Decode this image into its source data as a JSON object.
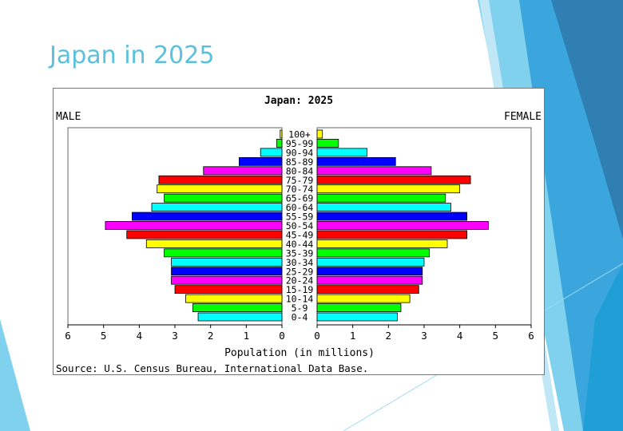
{
  "slide": {
    "title": "Japan in 2025"
  },
  "colors": {
    "accent": "#5bc0de",
    "dark_accent": "#2f7fb2"
  },
  "chart_data": {
    "type": "bar",
    "orientation": "horizontal-population-pyramid",
    "title": "Japan: 2025",
    "side_labels": {
      "left": "MALE",
      "right": "FEMALE"
    },
    "xlabel": "Population (in millions)",
    "source": "Source: U.S. Census Bureau, International Data Base.",
    "xlim": [
      0,
      6
    ],
    "x_ticks": [
      "6",
      "5",
      "4",
      "3",
      "2",
      "1",
      "0",
      "0",
      "1",
      "2",
      "3",
      "4",
      "5",
      "6"
    ],
    "categories": [
      "100+",
      "95-99",
      "90-94",
      "85-89",
      "80-84",
      "75-79",
      "70-74",
      "65-69",
      "60-64",
      "55-59",
      "50-54",
      "45-49",
      "40-44",
      "35-39",
      "30-34",
      "25-29",
      "20-24",
      "15-19",
      "10-14",
      "5-9",
      "0-4"
    ],
    "bar_colors": [
      "#ffff00",
      "#00ff00",
      "#00ffff",
      "#0000ff",
      "#ff00ff",
      "#ff0000",
      "#ffff00",
      "#00ff00",
      "#00ffff",
      "#0000ff",
      "#ff00ff",
      "#ff0000",
      "#ffff00",
      "#00ff00",
      "#00ffff",
      "#0000ff",
      "#ff00ff",
      "#ff0000",
      "#ffff00",
      "#00ff00",
      "#00ffff"
    ],
    "series": [
      {
        "name": "MALE",
        "values": [
          0.05,
          0.15,
          0.6,
          1.2,
          2.2,
          3.45,
          3.5,
          3.3,
          3.65,
          4.2,
          4.95,
          4.35,
          3.8,
          3.3,
          3.1,
          3.1,
          3.1,
          3.0,
          2.7,
          2.5,
          2.35
        ]
      },
      {
        "name": "FEMALE",
        "values": [
          0.15,
          0.6,
          1.4,
          2.2,
          3.2,
          4.3,
          4.0,
          3.6,
          3.75,
          4.2,
          4.8,
          4.2,
          3.65,
          3.15,
          3.0,
          2.95,
          2.95,
          2.85,
          2.6,
          2.35,
          2.25
        ]
      }
    ],
    "grid": false,
    "legend": "none"
  }
}
